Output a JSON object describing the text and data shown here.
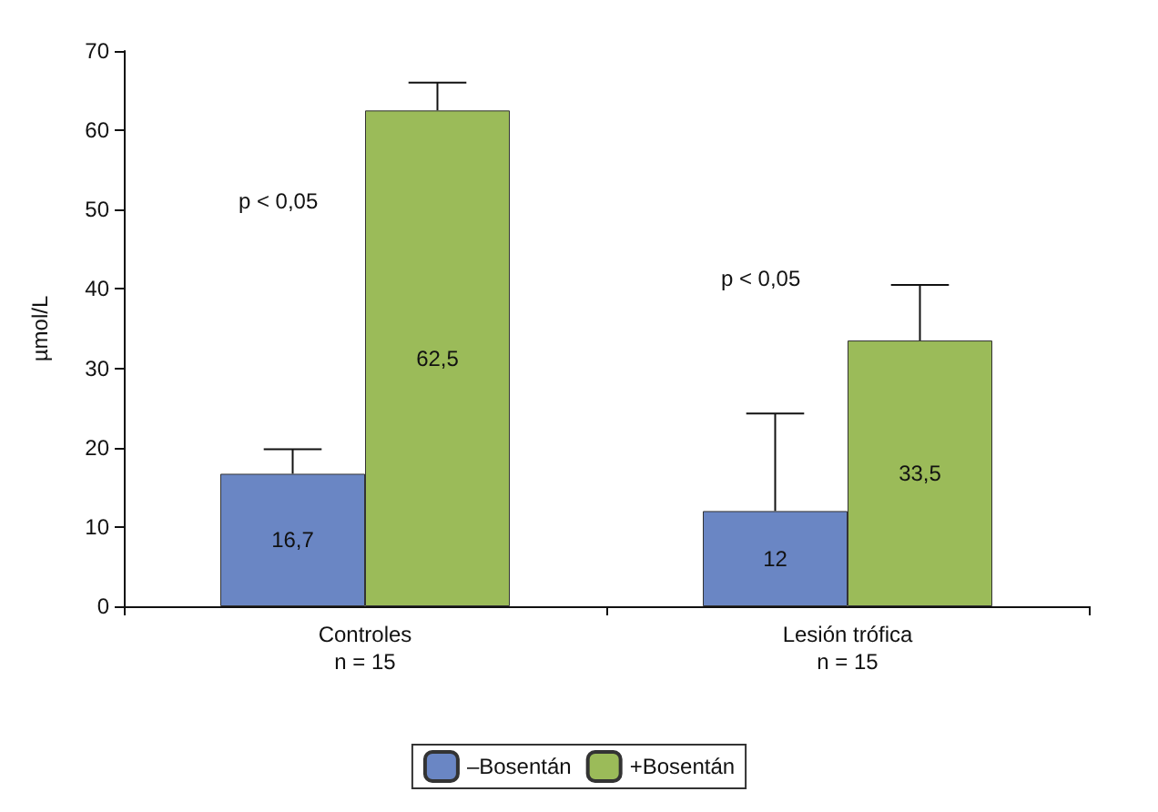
{
  "chart_data": {
    "type": "bar",
    "ylabel": "µmol/L",
    "categories": [
      "Controles\nn = 15",
      "Lesión trófica\nn = 15"
    ],
    "series": [
      {
        "name": "–Bosentán",
        "color": "#6a86c4",
        "values": [
          16.7,
          12
        ],
        "value_labels": [
          "16,7",
          "12"
        ],
        "errors": [
          [
            16.7,
            19.8
          ],
          [
            12,
            24.3
          ]
        ]
      },
      {
        "name": "+Bosentán",
        "color": "#9bbb59",
        "values": [
          62.5,
          33.5
        ],
        "value_labels": [
          "62,5",
          "33,5"
        ],
        "errors": [
          [
            62.5,
            66
          ],
          [
            33.5,
            40.5
          ]
        ]
      }
    ],
    "ylim": [
      0,
      70
    ],
    "yticks": [
      0,
      10,
      20,
      30,
      40,
      50,
      60,
      70
    ],
    "grid": false,
    "legend": "bottom",
    "annotations": [
      "p < 0,05",
      "p < 0,05"
    ]
  }
}
